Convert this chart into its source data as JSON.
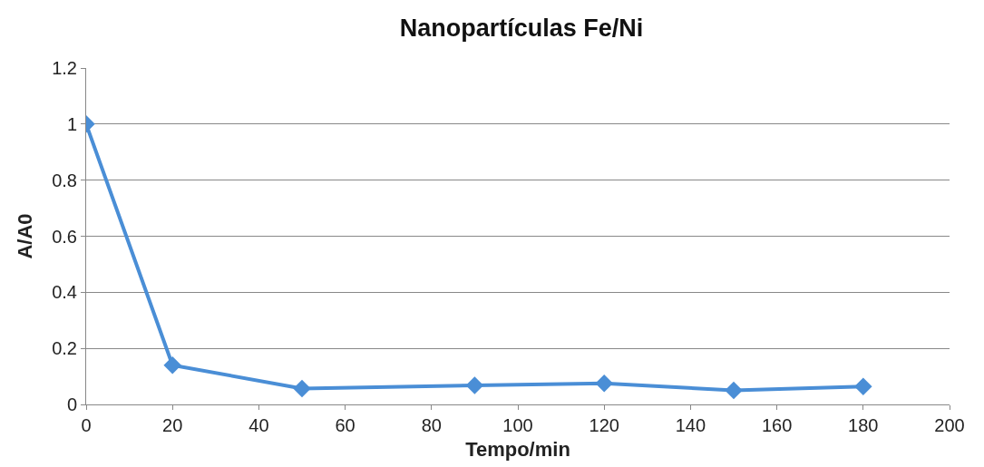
{
  "chart_data": {
    "type": "line",
    "title": "Nanopartículas Fe/Ni",
    "xlabel": "Tempo/min",
    "ylabel": "A/A0",
    "x": [
      0,
      20,
      50,
      90,
      120,
      150,
      180
    ],
    "series": [
      {
        "color": "#4a8ed6",
        "values": [
          1,
          0.14,
          0.057,
          0.068,
          0.075,
          0.05,
          0.064
        ]
      }
    ],
    "xlim": [
      0,
      200
    ],
    "xticks": [
      0,
      20,
      40,
      60,
      80,
      100,
      120,
      140,
      160,
      180,
      200
    ],
    "ylim": [
      0,
      1.2
    ],
    "yticks": [
      0,
      0.2,
      0.4,
      0.6,
      0.8,
      1,
      1.2
    ],
    "grid": "y",
    "marker": "diamond",
    "line_style": "solid"
  }
}
